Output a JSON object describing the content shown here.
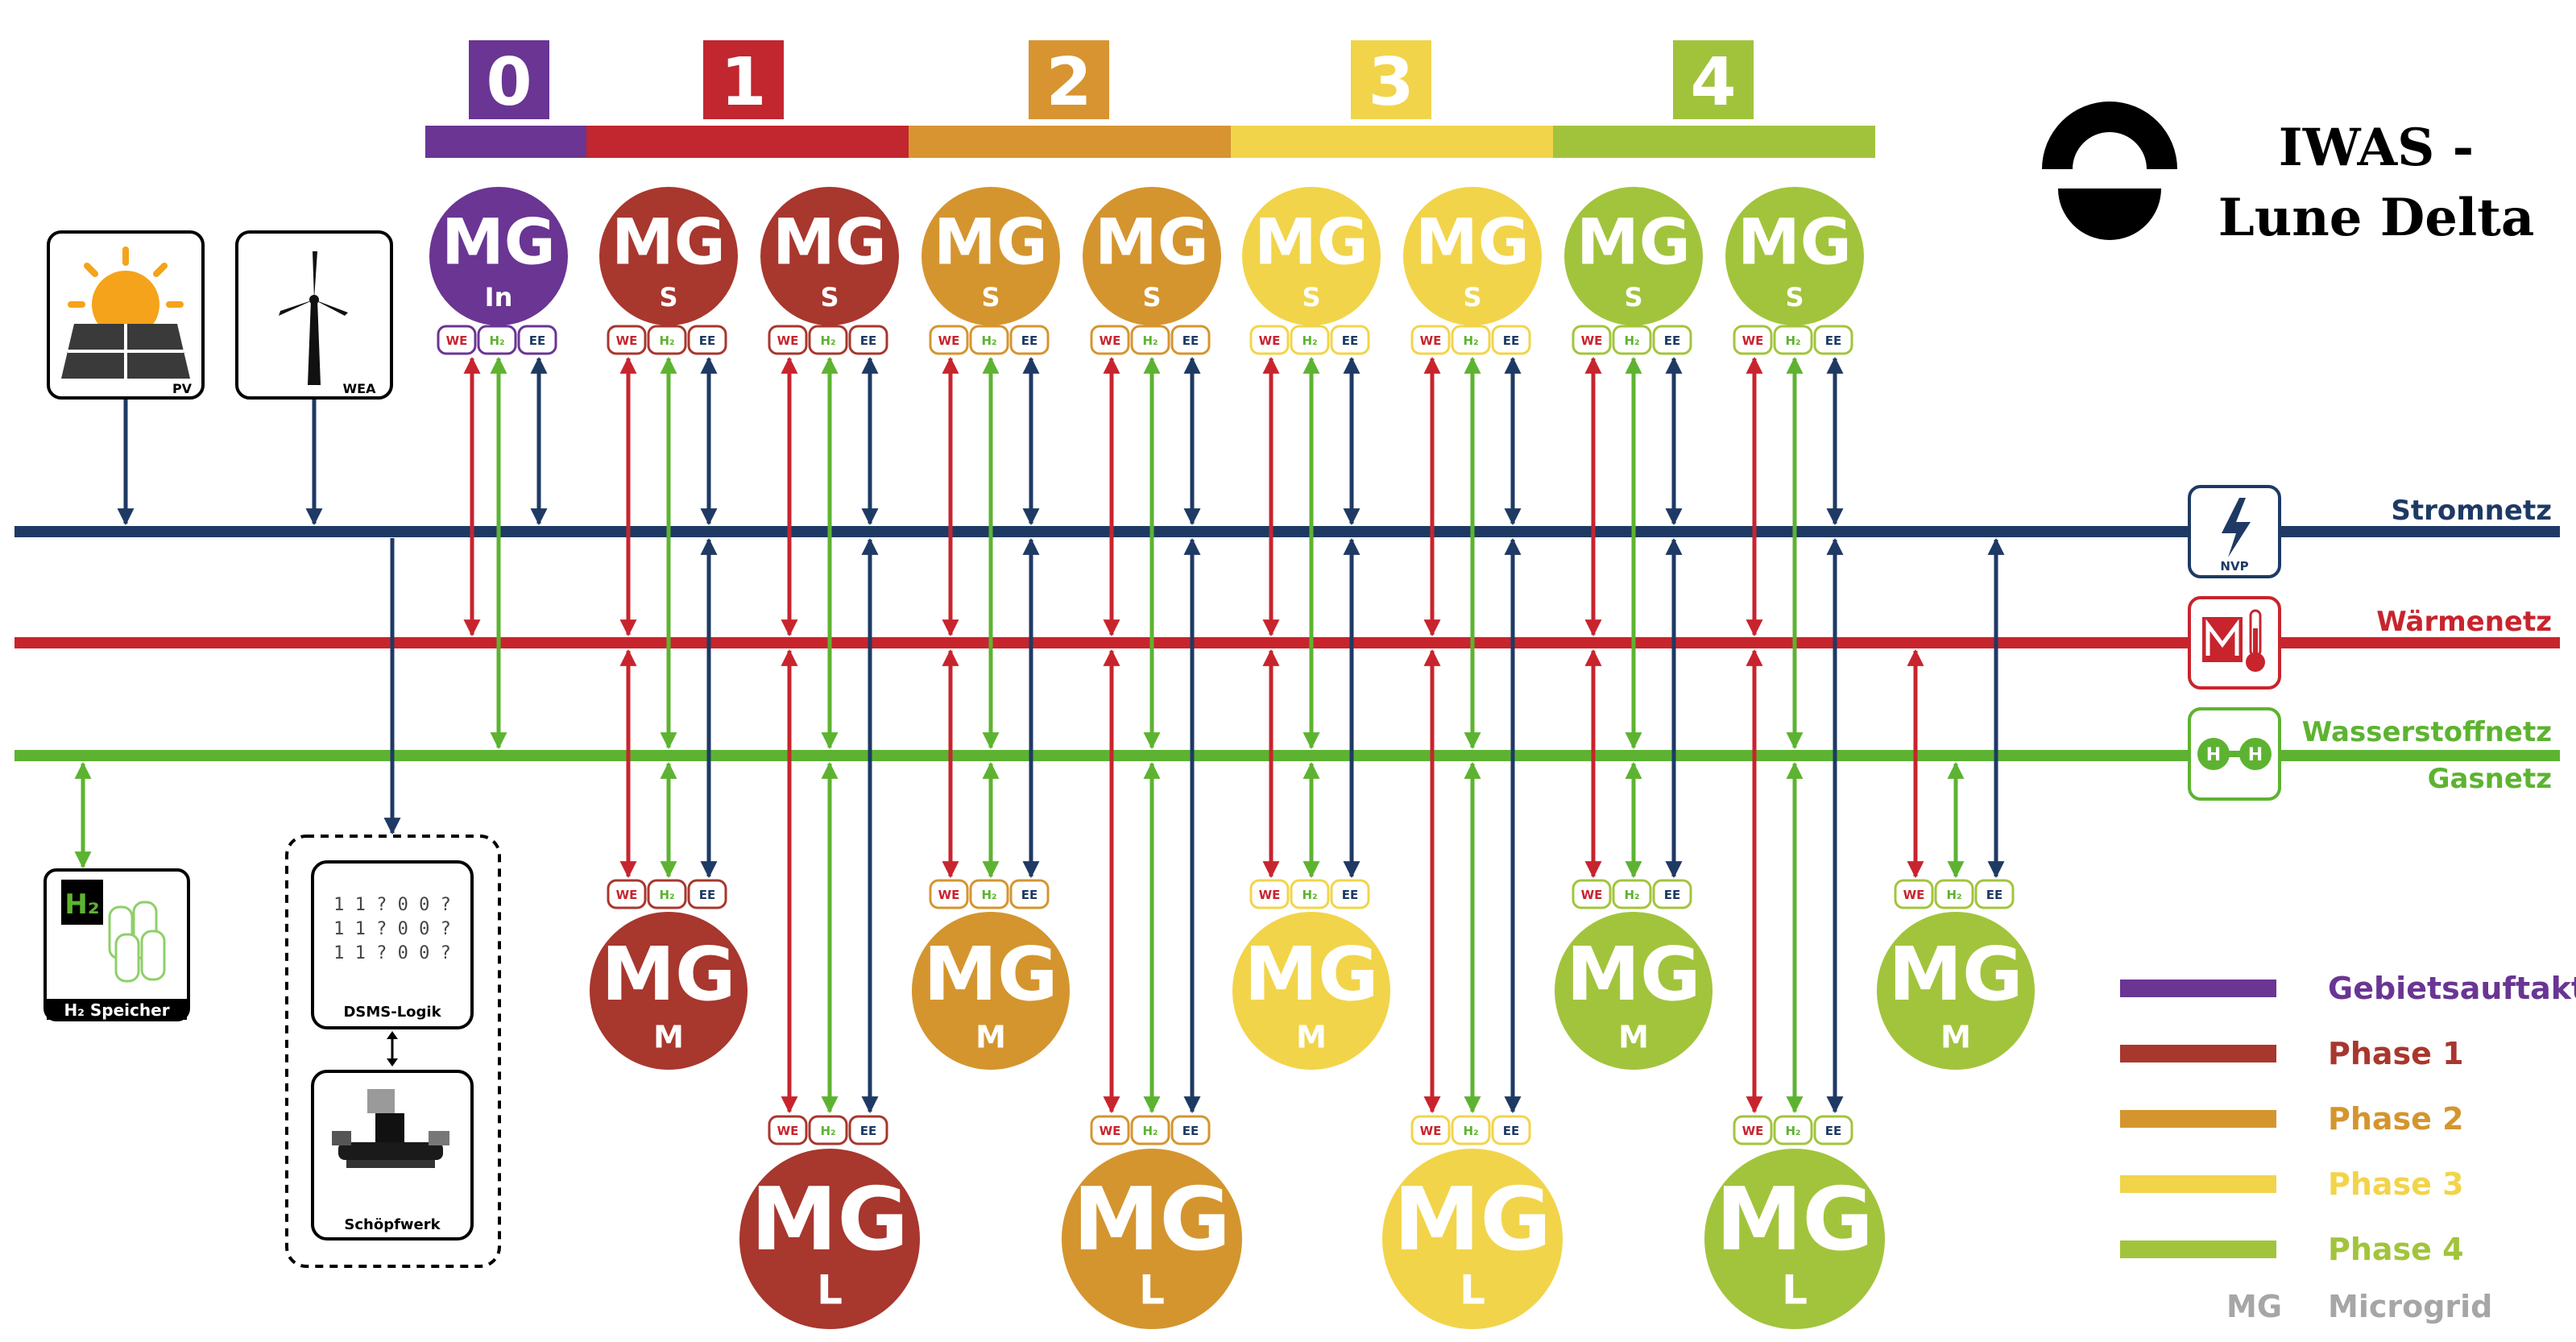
{
  "title": {
    "line1": "IWAS -",
    "line2": "Lune Delta"
  },
  "colors": {
    "phase0": "#6a3593",
    "phase1": "#c2262f",
    "phase2": "#d79431",
    "phase3": "#f2d44b",
    "phase4": "#a1c33c",
    "circle1": "#a8372e",
    "circle2": "#d4952f",
    "circle3": "#f2d44a",
    "circle4": "#a2c43c",
    "strom": "#1e3a64",
    "waerme": "#c8242e",
    "wasserstoff": "#5db331",
    "legend_gray": "#a6a6a6"
  },
  "phases": [
    {
      "label": "0",
      "color_key": "phase0"
    },
    {
      "label": "1",
      "color_key": "phase1"
    },
    {
      "label": "2",
      "color_key": "phase2"
    },
    {
      "label": "3",
      "color_key": "phase3"
    },
    {
      "label": "4",
      "color_key": "phase4"
    }
  ],
  "grids": {
    "strom": "Stromnetz",
    "waerme": "Wärmenetz",
    "wasserstoff": "Wasserstoffnetz",
    "gas": "Gasnetz"
  },
  "port_labels": {
    "we": "WE",
    "h2": "H₂",
    "ee": "EE"
  },
  "mg_text": "MG",
  "top_microgrids": [
    {
      "sub": "In",
      "color_key": "phase0"
    },
    {
      "sub": "S",
      "color_key": "circle1"
    },
    {
      "sub": "S",
      "color_key": "circle1"
    },
    {
      "sub": "S",
      "color_key": "circle2"
    },
    {
      "sub": "S",
      "color_key": "circle2"
    },
    {
      "sub": "S",
      "color_key": "circle3"
    },
    {
      "sub": "S",
      "color_key": "circle3"
    },
    {
      "sub": "S",
      "color_key": "circle4"
    },
    {
      "sub": "S",
      "color_key": "circle4"
    }
  ],
  "medium_microgrids": [
    {
      "sub": "M",
      "color_key": "circle1"
    },
    {
      "sub": "M",
      "color_key": "circle2"
    },
    {
      "sub": "M",
      "color_key": "circle3"
    },
    {
      "sub": "M",
      "color_key": "circle4"
    },
    {
      "sub": "M",
      "color_key": "circle4"
    }
  ],
  "large_microgrids": [
    {
      "sub": "L",
      "color_key": "circle1"
    },
    {
      "sub": "L",
      "color_key": "circle2"
    },
    {
      "sub": "L",
      "color_key": "circle3"
    },
    {
      "sub": "L",
      "color_key": "circle4"
    }
  ],
  "sources": {
    "pv": "PV",
    "wea": "WEA",
    "nvp": "NVP"
  },
  "h2_storage": {
    "label": "H₂ Speicher",
    "symbol": "H₂"
  },
  "control": {
    "dsms": "DSMS-Logik",
    "pump": "Schöpfwerk",
    "data_text": "1 1 ? 0 0 ?"
  },
  "legend": [
    {
      "label": "Gebietsauftakt",
      "color_key": "phase0"
    },
    {
      "label": "Phase 1",
      "color_key": "circle1"
    },
    {
      "label": "Phase 2",
      "color_key": "circle2"
    },
    {
      "label": "Phase 3",
      "color_key": "circle3"
    },
    {
      "label": "Phase 4",
      "color_key": "circle4"
    }
  ],
  "legend_mg": {
    "abbr": "MG",
    "label": "Microgrid"
  }
}
